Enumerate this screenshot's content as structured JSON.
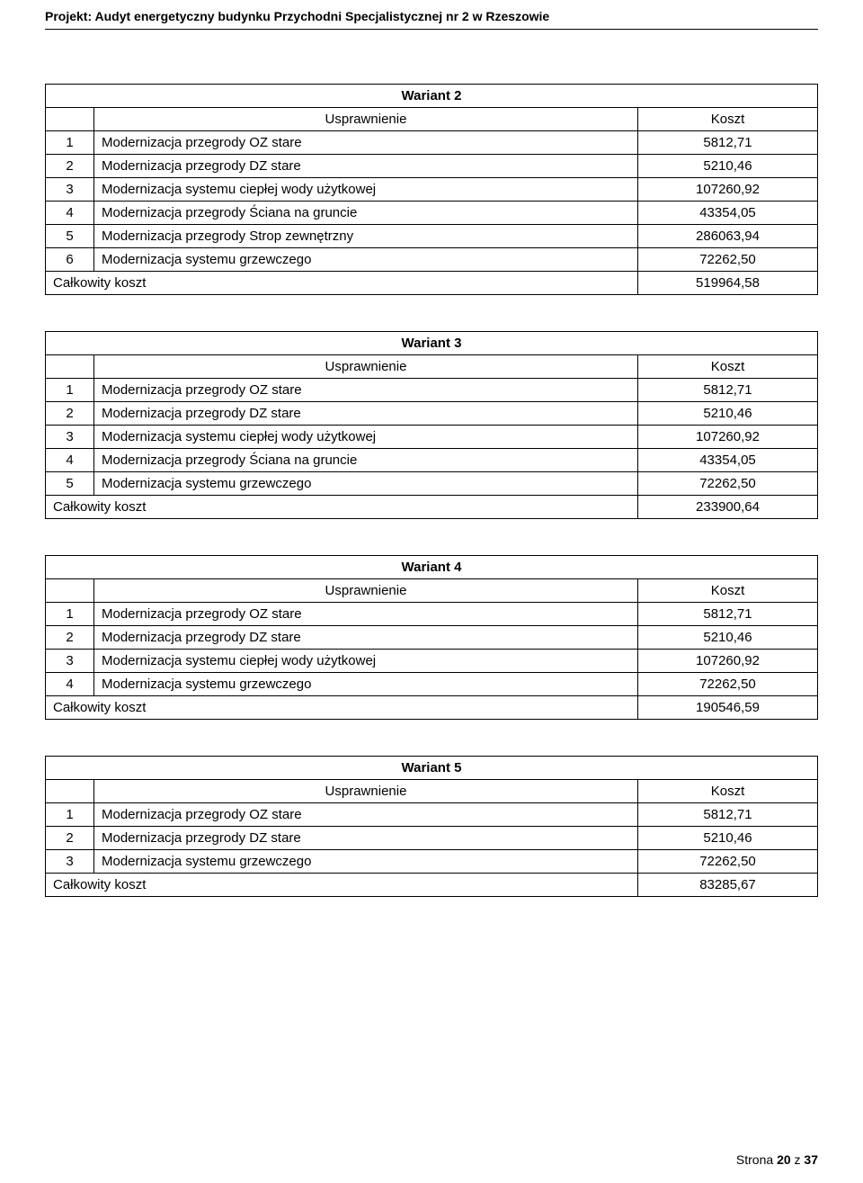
{
  "project_header": "Projekt: Audyt energetyczny budynku Przychodni Specjalistycznej nr 2 w Rzeszowie",
  "labels": {
    "usprawnienie": "Usprawnienie",
    "koszt": "Koszt",
    "calkowity": "Całkowity koszt"
  },
  "variants": [
    {
      "title": "Wariant 2",
      "rows": [
        {
          "n": "1",
          "desc": "Modernizacja przegrody OZ stare",
          "val": "5812,71"
        },
        {
          "n": "2",
          "desc": "Modernizacja przegrody DZ stare",
          "val": "5210,46"
        },
        {
          "n": "3",
          "desc": "Modernizacja systemu ciepłej wody użytkowej",
          "val": "107260,92"
        },
        {
          "n": "4",
          "desc": "Modernizacja przegrody Ściana na gruncie",
          "val": "43354,05"
        },
        {
          "n": "5",
          "desc": "Modernizacja przegrody Strop zewnętrzny",
          "val": "286063,94"
        },
        {
          "n": "6",
          "desc": "Modernizacja systemu grzewczego",
          "val": "72262,50"
        }
      ],
      "total": "519964,58"
    },
    {
      "title": "Wariant 3",
      "rows": [
        {
          "n": "1",
          "desc": "Modernizacja przegrody OZ stare",
          "val": "5812,71"
        },
        {
          "n": "2",
          "desc": "Modernizacja przegrody DZ stare",
          "val": "5210,46"
        },
        {
          "n": "3",
          "desc": "Modernizacja systemu ciepłej wody użytkowej",
          "val": "107260,92"
        },
        {
          "n": "4",
          "desc": "Modernizacja przegrody Ściana na gruncie",
          "val": "43354,05"
        },
        {
          "n": "5",
          "desc": "Modernizacja systemu grzewczego",
          "val": "72262,50"
        }
      ],
      "total": "233900,64"
    },
    {
      "title": "Wariant 4",
      "rows": [
        {
          "n": "1",
          "desc": "Modernizacja przegrody OZ stare",
          "val": "5812,71"
        },
        {
          "n": "2",
          "desc": "Modernizacja przegrody DZ stare",
          "val": "5210,46"
        },
        {
          "n": "3",
          "desc": "Modernizacja systemu ciepłej wody użytkowej",
          "val": "107260,92"
        },
        {
          "n": "4",
          "desc": "Modernizacja systemu grzewczego",
          "val": "72262,50"
        }
      ],
      "total": "190546,59"
    },
    {
      "title": "Wariant 5",
      "rows": [
        {
          "n": "1",
          "desc": "Modernizacja przegrody OZ stare",
          "val": "5812,71"
        },
        {
          "n": "2",
          "desc": "Modernizacja przegrody DZ stare",
          "val": "5210,46"
        },
        {
          "n": "3",
          "desc": "Modernizacja systemu grzewczego",
          "val": "72262,50"
        }
      ],
      "total": "83285,67"
    }
  ],
  "footer": {
    "label": "Strona",
    "current": "20",
    "of": "z",
    "total": "37"
  }
}
